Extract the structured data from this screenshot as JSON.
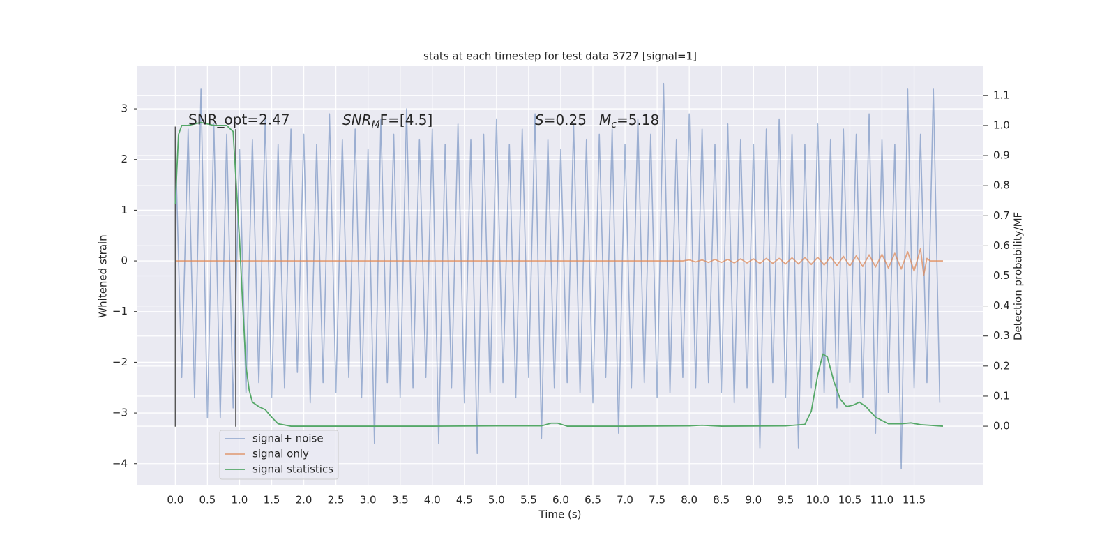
{
  "chart_data": {
    "type": "line",
    "title": "stats at each timestep for test data 3727 [signal=1]",
    "xlabel": "Time (s)",
    "ylabel": "Whitened strain",
    "y2label": "Detection probability/MF",
    "xlim": [
      -0.59,
      12.58
    ],
    "ylim": [
      -4.43,
      3.84
    ],
    "y2lim": [
      -0.197,
      1.197
    ],
    "xticks": [
      {
        "value": 0,
        "label": "0.0"
      },
      {
        "value": 0.5,
        "label": "0.5"
      },
      {
        "value": 1,
        "label": "1.0"
      },
      {
        "value": 1.5,
        "label": "1.5"
      },
      {
        "value": 2,
        "label": "2.0"
      },
      {
        "value": 2.5,
        "label": "2.5"
      },
      {
        "value": 3,
        "label": "3.0"
      },
      {
        "value": 3.5,
        "label": "3.5"
      },
      {
        "value": 4,
        "label": "4.0"
      },
      {
        "value": 4.5,
        "label": "4.5"
      },
      {
        "value": 5,
        "label": "5.0"
      },
      {
        "value": 5.5,
        "label": "5.5"
      },
      {
        "value": 6,
        "label": "6.0"
      },
      {
        "value": 6.5,
        "label": "6.5"
      },
      {
        "value": 7,
        "label": "7.0"
      },
      {
        "value": 7.5,
        "label": "7.5"
      },
      {
        "value": 8,
        "label": "8.0"
      },
      {
        "value": 8.5,
        "label": "8.5"
      },
      {
        "value": 9,
        "label": "9.0"
      },
      {
        "value": 9.5,
        "label": "9.5"
      },
      {
        "value": 10,
        "label": "10.0"
      },
      {
        "value": 10.5,
        "label": "10.5"
      },
      {
        "value": 11,
        "label": "11.0"
      },
      {
        "value": 11.5,
        "label": "11.5"
      }
    ],
    "yticks": [
      {
        "value": -4,
        "label": "−4"
      },
      {
        "value": -3,
        "label": "−3"
      },
      {
        "value": -2,
        "label": "−2"
      },
      {
        "value": -1,
        "label": "−1"
      },
      0,
      1,
      2,
      3
    ],
    "y2ticks": [
      {
        "value": 0,
        "label": "0.0"
      },
      {
        "value": 0.1,
        "label": "0.1"
      },
      {
        "value": 0.2,
        "label": "0.2"
      },
      {
        "value": 0.3,
        "label": "0.3"
      },
      {
        "value": 0.4,
        "label": "0.4"
      },
      {
        "value": 0.5,
        "label": "0.5"
      },
      {
        "value": 0.6,
        "label": "0.6"
      },
      {
        "value": 0.7,
        "label": "0.7"
      },
      {
        "value": 0.8,
        "label": "0.8"
      },
      {
        "value": 0.9,
        "label": "0.9"
      },
      {
        "value": 1,
        "label": "1.0"
      },
      {
        "value": 1.1,
        "label": "1.1"
      }
    ],
    "grid": true,
    "legend": "lower left",
    "series": [
      {
        "name": "signal+ noise",
        "color": "#4c72b0",
        "x": [
          0,
          0.1,
          0.2,
          0.3,
          0.4,
          0.5,
          0.6,
          0.7,
          0.8,
          0.9,
          1,
          1.1,
          1.2,
          1.3,
          1.4,
          1.5,
          1.6,
          1.7,
          1.8,
          1.9,
          2,
          2.1,
          2.2,
          2.3,
          2.4,
          2.5,
          2.6,
          2.7,
          2.8,
          2.9,
          3,
          3.1,
          3.2,
          3.3,
          3.4,
          3.5,
          3.6,
          3.7,
          3.8,
          3.9,
          4,
          4.1,
          4.2,
          4.3,
          4.4,
          4.5,
          4.6,
          4.7,
          4.8,
          4.9,
          5,
          5.1,
          5.2,
          5.3,
          5.4,
          5.5,
          5.6,
          5.7,
          5.8,
          5.9,
          6,
          6.1,
          6.2,
          6.3,
          6.4,
          6.5,
          6.6,
          6.7,
          6.8,
          6.9,
          7,
          7.1,
          7.2,
          7.3,
          7.4,
          7.5,
          7.6,
          7.7,
          7.8,
          7.9,
          8,
          8.1,
          8.2,
          8.3,
          8.4,
          8.5,
          8.6,
          8.7,
          8.8,
          8.9,
          9,
          9.1,
          9.2,
          9.3,
          9.4,
          9.5,
          9.6,
          9.7,
          9.8,
          9.9,
          10,
          10.1,
          10.2,
          10.3,
          10.4,
          10.5,
          10.6,
          10.7,
          10.8,
          10.9,
          11,
          11.1,
          11.2,
          11.3,
          11.4,
          11.5,
          11.6,
          11.7,
          11.8,
          11.9
        ],
        "values": [
          2.4,
          -2.3,
          2.6,
          -2.7,
          3.4,
          -3.1,
          2.7,
          -3.1,
          2.5,
          -2.9,
          2.2,
          -2.6,
          2.4,
          -2.4,
          2.8,
          -2.7,
          2.3,
          -2.5,
          2.6,
          -2.2,
          2.5,
          -2.8,
          2.3,
          -2.4,
          2.9,
          -2.6,
          2.4,
          -2.3,
          2.6,
          -2.7,
          2.2,
          -3.6,
          2.8,
          -2.4,
          2.5,
          -2.7,
          3.0,
          -2.5,
          2.4,
          -2.3,
          2.6,
          -3.6,
          2.3,
          -2.5,
          2.7,
          -2.8,
          2.4,
          -3.8,
          2.5,
          -2.6,
          2.8,
          -2.4,
          2.3,
          -2.7,
          2.6,
          -2.3,
          2.9,
          -3.5,
          2.4,
          -2.5,
          2.2,
          -2.4,
          2.7,
          -2.6,
          2.4,
          -2.8,
          2.5,
          -2.3,
          2.6,
          -3.4,
          2.3,
          -2.5,
          2.8,
          -2.4,
          2.5,
          -2.7,
          3.5,
          -2.6,
          2.4,
          -2.3,
          2.9,
          -2.5,
          2.6,
          -2.4,
          2.3,
          -2.6,
          2.7,
          -2.8,
          2.4,
          -2.5,
          2.3,
          -3.7,
          2.6,
          -2.4,
          2.8,
          -2.7,
          2.5,
          -3.7,
          2.3,
          -2.5,
          2.7,
          -2.6,
          2.4,
          -2.9,
          2.6,
          -2.4,
          2.5,
          -2.7,
          2.9,
          -3.4,
          2.4,
          -2.6,
          2.3,
          -4.1,
          3.4,
          -2.5,
          2.5,
          -2.4,
          3.4,
          -2.8
        ]
      },
      {
        "name": "signal only",
        "color": "#dd8452",
        "x": [
          0,
          7.9,
          8,
          8.1,
          8.2,
          8.3,
          8.4,
          8.5,
          8.6,
          8.7,
          8.8,
          8.9,
          9,
          9.1,
          9.2,
          9.3,
          9.4,
          9.5,
          9.6,
          9.7,
          9.8,
          9.9,
          10,
          10.1,
          10.2,
          10.3,
          10.4,
          10.5,
          10.6,
          10.7,
          10.8,
          10.9,
          11,
          11.1,
          11.2,
          11.3,
          11.4,
          11.5,
          11.6,
          11.65,
          11.7,
          11.75,
          11.95
        ],
        "values": [
          0,
          0,
          0.02,
          -0.02,
          0.02,
          -0.03,
          0.03,
          -0.03,
          0.03,
          -0.04,
          0.04,
          -0.04,
          0.04,
          -0.05,
          0.05,
          -0.05,
          0.05,
          -0.06,
          0.06,
          -0.06,
          0.07,
          -0.07,
          0.07,
          -0.08,
          0.08,
          -0.09,
          0.09,
          -0.1,
          0.1,
          -0.11,
          0.12,
          -0.12,
          0.13,
          -0.14,
          0.15,
          -0.16,
          0.18,
          -0.2,
          0.24,
          -0.28,
          0.05,
          0,
          0
        ]
      },
      {
        "name": "signal statistics",
        "color": "#55a868",
        "axis": "y2",
        "x": [
          0,
          0.05,
          0.1,
          0.2,
          0.4,
          0.6,
          0.8,
          0.9,
          1,
          1.05,
          1.1,
          1.15,
          1.2,
          1.3,
          1.4,
          1.5,
          1.6,
          1.8,
          2.5,
          4,
          5,
          5.7,
          5.85,
          5.95,
          6.1,
          7,
          8,
          8.2,
          8.5,
          9.5,
          9.8,
          9.9,
          10,
          10.08,
          10.15,
          10.25,
          10.35,
          10.45,
          10.55,
          10.65,
          10.75,
          10.9,
          11.1,
          11.3,
          11.45,
          11.6,
          11.95
        ],
        "values": [
          0.74,
          0.97,
          1.0,
          1.0,
          1.01,
          1.0,
          1.0,
          0.98,
          0.62,
          0.4,
          0.2,
          0.12,
          0.08,
          0.065,
          0.055,
          0.03,
          0.008,
          0.0,
          0.0,
          0.0,
          0.001,
          0.001,
          0.01,
          0.01,
          0.0,
          0.0,
          0.001,
          0.003,
          0.0,
          0.001,
          0.006,
          0.05,
          0.17,
          0.24,
          0.23,
          0.15,
          0.09,
          0.065,
          0.07,
          0.08,
          0.065,
          0.03,
          0.008,
          0.008,
          0.011,
          0.005,
          0.0
        ]
      }
    ],
    "vlines": [
      {
        "x": 0,
        "ymin": -3.27,
        "ymax": 2.65,
        "color": "#555555"
      },
      {
        "x": 0.94,
        "ymin": -3.27,
        "ymax": 2.6,
        "color": "#555555"
      }
    ],
    "annotations": [
      {
        "text": "SNR_opt=2.47"
      },
      {
        "text": "SNR",
        "sub": "M",
        "tail": "F=[4.5]"
      },
      {
        "text": "S",
        "tail": "=0.25"
      },
      {
        "text": "M",
        "sub": "c",
        "tail": "=5.18"
      }
    ]
  }
}
